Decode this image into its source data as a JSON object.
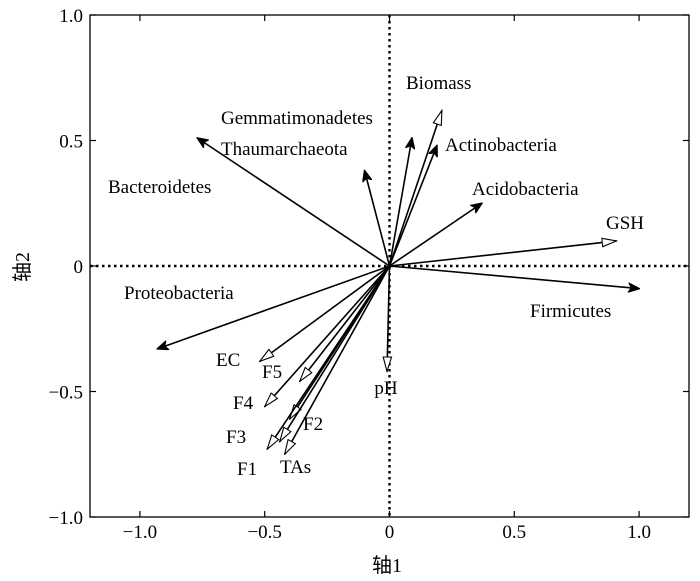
{
  "chart_data": {
    "type": "biplot",
    "xlabel": "轴1",
    "ylabel": "轴2",
    "xlim": [
      -1.2,
      1.2
    ],
    "ylim": [
      -1.0,
      1.0
    ],
    "xticks": [
      -1.0,
      -0.5,
      0,
      0.5,
      1.0
    ],
    "yticks": [
      -1.0,
      -0.5,
      0,
      0.5,
      1.0
    ],
    "xtick_labels": [
      "−1.0",
      "−0.5",
      "0",
      "0.5",
      "1.0"
    ],
    "ytick_labels": [
      "−1.0",
      "−0.5",
      "0",
      "0.5",
      "1.0"
    ],
    "zero_lines": "dotted",
    "grid": false,
    "series": [
      {
        "name": "species",
        "arrow_head": "filled",
        "vectors": [
          {
            "label": "Gemmatimonadetes",
            "x": 0.09,
            "y": 0.51
          },
          {
            "label": "Thaumarchaeota",
            "x": -0.1,
            "y": 0.38
          },
          {
            "label": "Bacteroidetes",
            "x": -0.77,
            "y": 0.51
          },
          {
            "label": "Actinobacteria",
            "x": 0.19,
            "y": 0.48
          },
          {
            "label": "Acidobacteria",
            "x": 0.37,
            "y": 0.25
          },
          {
            "label": "Firmicutes",
            "x": 1.0,
            "y": -0.09
          },
          {
            "label": "Proteobacteria",
            "x": -0.93,
            "y": -0.33
          }
        ]
      },
      {
        "name": "environment",
        "arrow_head": "open",
        "vectors": [
          {
            "label": "Biomass",
            "x": 0.21,
            "y": 0.62
          },
          {
            "label": "GSH",
            "x": 0.91,
            "y": 0.1
          },
          {
            "label": "pH",
            "x": -0.01,
            "y": -0.42
          },
          {
            "label": "EC",
            "x": -0.52,
            "y": -0.38
          },
          {
            "label": "F5",
            "x": -0.36,
            "y": -0.46
          },
          {
            "label": "F4",
            "x": -0.5,
            "y": -0.56
          },
          {
            "label": "F2",
            "x": -0.4,
            "y": -0.61
          },
          {
            "label": "F3",
            "x": -0.49,
            "y": -0.73
          },
          {
            "label": "TAs",
            "x": -0.42,
            "y": -0.75
          },
          {
            "label": "F1",
            "x": -0.44,
            "y": -0.7
          }
        ]
      }
    ]
  }
}
